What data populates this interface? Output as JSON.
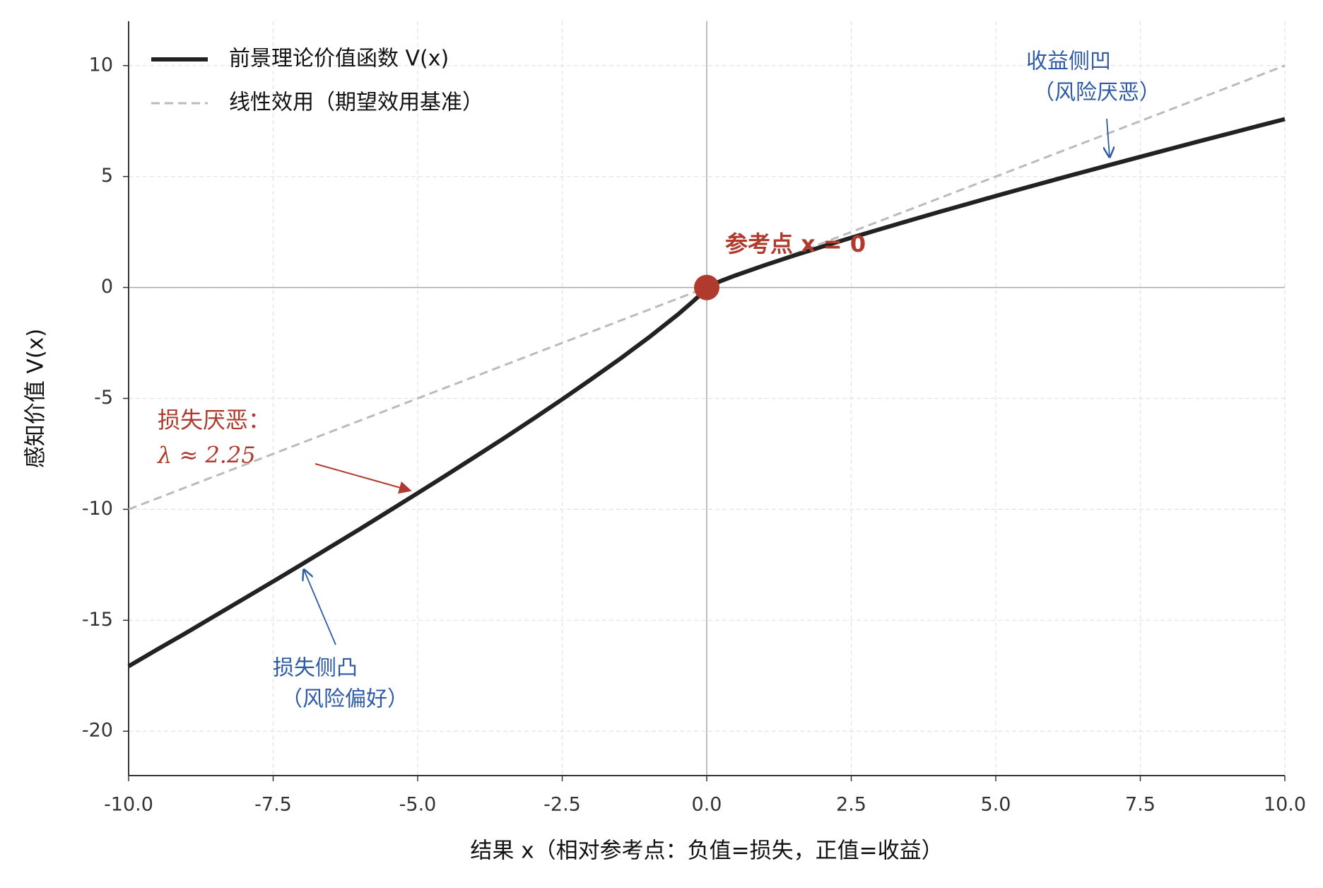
{
  "chart_data": {
    "type": "line",
    "xlabel": "结果 x（相对参考点：负值=损失，正值=收益）",
    "ylabel": "感知价值 V(x)",
    "xlim": [
      -10,
      10
    ],
    "ylim": [
      -22,
      12
    ],
    "xticks": [
      {
        "value": -10,
        "label": "-10.0"
      },
      {
        "value": -7.5,
        "label": "-7.5"
      },
      {
        "value": -5,
        "label": "-5.0"
      },
      {
        "value": -2.5,
        "label": "-2.5"
      },
      {
        "value": 0,
        "label": "0.0"
      },
      {
        "value": 2.5,
        "label": "2.5"
      },
      {
        "value": 5,
        "label": "5.0"
      },
      {
        "value": 7.5,
        "label": "7.5"
      },
      {
        "value": 10,
        "label": "10.0"
      }
    ],
    "yticks": [
      -20,
      -15,
      -10,
      -5,
      0,
      5,
      10
    ],
    "grid": true,
    "legend": "upper left",
    "series": [
      {
        "name": "前景理论价值函数 V(x)",
        "color": "#222222",
        "style": "solid",
        "x": [
          -10,
          -9.5,
          -9,
          -8.5,
          -8,
          -7.5,
          -7,
          -6.5,
          -6,
          -5.5,
          -5,
          -4.5,
          -4,
          -3.5,
          -3,
          -2.5,
          -2,
          -1.5,
          -1,
          -0.5,
          -0.25,
          -0.1,
          0,
          0.1,
          0.25,
          0.5,
          1,
          1.5,
          2,
          2.5,
          3,
          3.5,
          4,
          4.5,
          5,
          5.5,
          6,
          6.5,
          7,
          7.5,
          8,
          8.5,
          9,
          9.5,
          10
        ],
        "values": [
          -17.07,
          -16.31,
          -15.56,
          -14.79,
          -14.02,
          -13.25,
          -12.47,
          -11.68,
          -10.89,
          -10.08,
          -9.27,
          -8.45,
          -7.62,
          -6.78,
          -5.92,
          -5.04,
          -4.14,
          -3.22,
          -2.25,
          -1.22,
          -0.66,
          -0.3,
          0,
          0.132,
          0.295,
          0.543,
          1,
          1.429,
          1.84,
          2.24,
          2.63,
          3.012,
          3.387,
          3.757,
          4.122,
          4.482,
          4.84,
          5.193,
          5.542,
          5.889,
          6.233,
          6.575,
          6.914,
          7.251,
          7.586
        ]
      },
      {
        "name": "线性效用（期望效用基准）",
        "color": "#bbbbbb",
        "style": "dashed",
        "x": [
          -10,
          10
        ],
        "values": [
          -10,
          10
        ]
      }
    ],
    "annotations": {
      "reference": "参考点 x = 0",
      "loss_aversion": [
        "损失厌恶：",
        "λ ≈ 2.25"
      ],
      "gain_concave": [
        "收益侧凹",
        "（风险厌恶）"
      ],
      "loss_convex": [
        "损失侧凸",
        "（风险偏好）"
      ]
    }
  }
}
